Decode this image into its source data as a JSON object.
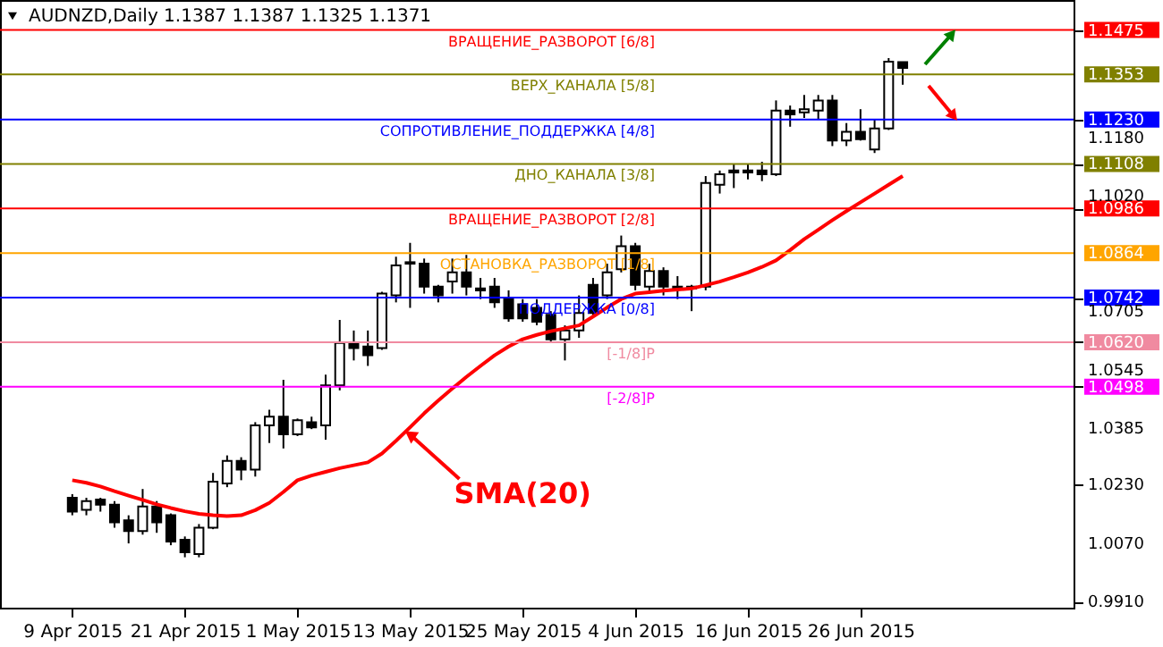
{
  "chart_data": {
    "type": "candlestick",
    "title": "AUDNZD,Daily  1.1387 1.1387 1.1325 1.1371",
    "categories": [
      "9 Apr 2015",
      null,
      null,
      null,
      null,
      null,
      null,
      null,
      "21 Apr 2015",
      null,
      null,
      null,
      null,
      null,
      null,
      null,
      "1 May 2015",
      null,
      null,
      null,
      null,
      null,
      null,
      null,
      "13 May 2015",
      null,
      null,
      null,
      null,
      null,
      null,
      null,
      "25 May 2015",
      null,
      null,
      null,
      null,
      null,
      null,
      null,
      "4 Jun 2015",
      null,
      null,
      null,
      null,
      null,
      null,
      null,
      "16 Jun 2015",
      null,
      null,
      null,
      null,
      null,
      null,
      null,
      "26 Jun 2015",
      null,
      null,
      null
    ],
    "ohlc": [
      [
        1.0194,
        1.0204,
        1.0146,
        1.0156
      ],
      [
        1.0161,
        1.0194,
        1.0146,
        1.0185
      ],
      [
        1.0189,
        1.0194,
        1.0156,
        1.0175
      ],
      [
        1.0175,
        1.0185,
        1.0112,
        1.0127
      ],
      [
        1.0132,
        1.0146,
        1.0069,
        1.0103
      ],
      [
        1.0103,
        1.0218,
        1.0093,
        1.017
      ],
      [
        1.017,
        1.0185,
        1.0098,
        1.0127
      ],
      [
        1.0146,
        1.0151,
        1.0064,
        1.0074
      ],
      [
        1.0079,
        1.0088,
        1.0031,
        1.0045
      ],
      [
        1.004,
        1.0122,
        1.0031,
        1.0112
      ],
      [
        1.0112,
        1.0262,
        1.0108,
        1.0238
      ],
      [
        1.0233,
        1.031,
        1.0223,
        1.0295
      ],
      [
        1.0295,
        1.0305,
        1.0242,
        1.0271
      ],
      [
        1.0271,
        1.0401,
        1.0252,
        1.0392
      ],
      [
        1.0392,
        1.0435,
        1.0344,
        1.0416
      ],
      [
        1.0416,
        1.0517,
        1.0329,
        1.0368
      ],
      [
        1.0368,
        1.0411,
        1.0363,
        1.0406
      ],
      [
        1.0401,
        1.0416,
        1.0382,
        1.0387
      ],
      [
        1.0392,
        1.0531,
        1.0353,
        1.0502
      ],
      [
        1.0502,
        1.0681,
        1.0488,
        1.0618
      ],
      [
        1.0618,
        1.0652,
        1.057,
        1.0604
      ],
      [
        1.0608,
        1.0652,
        1.0555,
        1.0584
      ],
      [
        1.0604,
        1.0758,
        1.0599,
        1.0753
      ],
      [
        1.0748,
        1.0854,
        1.0729,
        1.083
      ],
      [
        1.0835,
        1.0892,
        1.0714,
        1.0839
      ],
      [
        1.0835,
        1.0849,
        1.0753,
        1.0772
      ],
      [
        1.0772,
        1.0777,
        1.0729,
        1.0748
      ],
      [
        1.0786,
        1.0849,
        1.0753,
        1.0811
      ],
      [
        1.0811,
        1.0859,
        1.0748,
        1.0772
      ],
      [
        1.0767,
        1.0796,
        1.0738,
        1.0762
      ],
      [
        1.0772,
        1.0796,
        1.0714,
        1.0729
      ],
      [
        1.0738,
        1.0762,
        1.0676,
        1.0685
      ],
      [
        1.0724,
        1.0738,
        1.0676,
        1.0685
      ],
      [
        1.0714,
        1.0738,
        1.0666,
        1.0676
      ],
      [
        1.0695,
        1.0705,
        1.0618,
        1.0628
      ],
      [
        1.0628,
        1.0666,
        1.057,
        1.0652
      ],
      [
        1.0652,
        1.0748,
        1.0632,
        1.07
      ],
      [
        1.0777,
        1.0796,
        1.069,
        1.07
      ],
      [
        1.0748,
        1.0835,
        1.0738,
        1.0811
      ],
      [
        1.082,
        1.0912,
        1.0811,
        1.0883
      ],
      [
        1.0883,
        1.0892,
        1.0762,
        1.0777
      ],
      [
        1.0772,
        1.0835,
        1.0753,
        1.0815
      ],
      [
        1.0815,
        1.0825,
        1.0748,
        1.0772
      ],
      [
        1.0772,
        1.0801,
        1.0738,
        1.0767
      ],
      [
        1.0772,
        1.0777,
        1.0705,
        1.0767
      ],
      [
        1.0772,
        1.1075,
        1.0762,
        1.1056
      ],
      [
        1.1051,
        1.109,
        1.1027,
        1.108
      ],
      [
        1.109,
        1.1109,
        1.1042,
        1.1085
      ],
      [
        1.109,
        1.1109,
        1.1066,
        1.1085
      ],
      [
        1.109,
        1.1114,
        1.1061,
        1.108
      ],
      [
        1.108,
        1.1282,
        1.1075,
        1.1254
      ],
      [
        1.1254,
        1.1268,
        1.121,
        1.1244
      ],
      [
        1.1249,
        1.1297,
        1.1234,
        1.1258
      ],
      [
        1.1254,
        1.1297,
        1.1229,
        1.1282
      ],
      [
        1.1282,
        1.1297,
        1.1157,
        1.1172
      ],
      [
        1.1172,
        1.122,
        1.1157,
        1.1196
      ],
      [
        1.1196,
        1.1258,
        1.1172,
        1.1176
      ],
      [
        1.1148,
        1.1229,
        1.1138,
        1.1205
      ],
      [
        1.1205,
        1.1398,
        1.1201,
        1.1388
      ],
      [
        1.1387,
        1.1387,
        1.1325,
        1.1371
      ]
    ],
    "series": [
      {
        "type": "line",
        "name": "SMA(20)",
        "color": "#ff0000",
        "values": [
          1.0242,
          1.0235,
          1.0225,
          1.0212,
          1.02,
          1.0188,
          1.0176,
          1.0166,
          1.0157,
          1.015,
          1.0146,
          1.0144,
          1.0146,
          1.016,
          1.018,
          1.021,
          1.0242,
          1.0255,
          1.0265,
          1.0275,
          1.0283,
          1.0291,
          1.0315,
          1.035,
          1.0387,
          1.0425,
          1.046,
          1.0493,
          1.0525,
          1.0555,
          1.0584,
          1.0608,
          1.0628,
          1.064,
          1.065,
          1.0658,
          1.0666,
          1.069,
          1.0715,
          1.0738,
          1.0753,
          1.0757,
          1.0761,
          1.0764,
          1.0767,
          1.0776,
          1.0786,
          1.0798,
          1.0811,
          1.0826,
          1.0844,
          1.0872,
          1.0902,
          1.0928,
          1.0954,
          1.0979,
          1.1003,
          1.1027,
          1.1051,
          1.1075
        ]
      }
    ],
    "ref_lines": [
      {
        "axis": "y",
        "value": 1.1475,
        "label": "ВРАЩЕНИЕ_РАЗВОРОТ [6/8]",
        "color": "#ff0000"
      },
      {
        "axis": "y",
        "value": 1.1353,
        "label": "ВЕРХ_КАНАЛА [5/8]",
        "color": "#808000"
      },
      {
        "axis": "y",
        "value": 1.123,
        "label": "СОПРОТИВЛЕНИЕ_ПОДДЕРЖКА [4/8]",
        "color": "#0000ff"
      },
      {
        "axis": "y",
        "value": 1.1108,
        "label": "ДНО_КАНАЛА [3/8]",
        "color": "#808000"
      },
      {
        "axis": "y",
        "value": 1.0986,
        "label": "ВРАЩЕНИЕ_РАЗВОРОТ [2/8]",
        "color": "#ff0000"
      },
      {
        "axis": "y",
        "value": 1.0864,
        "label": "ОСТАНОВКА_РАЗВОРОТ [1/8]",
        "color": "#ffa500"
      },
      {
        "axis": "y",
        "value": 1.0742,
        "label": "ПОДДЕРЖКА [0/8]",
        "color": "#0000ff"
      },
      {
        "axis": "y",
        "value": 1.062,
        "label": "[-1/8]P",
        "color": "#f08aa0"
      },
      {
        "axis": "y",
        "value": 1.0498,
        "label": "[-2/8]P",
        "color": "#ff00ff"
      }
    ],
    "ylim": [
      0.9893,
      1.1557
    ],
    "yticks": [
      {
        "value": 0.991,
        "label": "0.9910"
      },
      {
        "value": 1.007,
        "label": "1.0070"
      },
      {
        "value": 1.023,
        "label": "1.0230"
      },
      {
        "value": 1.0385,
        "label": "1.0385"
      },
      {
        "value": 1.0498,
        "label": "1.0498"
      },
      {
        "value": 1.0545,
        "label": "1.0545"
      },
      {
        "value": 1.062,
        "label": "1.0620"
      },
      {
        "value": 1.0705,
        "label": "1.0705"
      },
      {
        "value": 1.0742,
        "label": "1.0742"
      },
      {
        "value": 1.0864,
        "label": "1.0864"
      },
      {
        "value": 1.0986,
        "label": "1.0986"
      },
      {
        "value": 1.102,
        "label": "1.1020"
      },
      {
        "value": 1.1108,
        "label": "1.1108"
      },
      {
        "value": 1.118,
        "label": "1.1180"
      },
      {
        "value": 1.123,
        "label": "1.1230"
      },
      {
        "value": 1.1353,
        "label": "1.1353"
      },
      {
        "value": 1.1475,
        "label": "1.1475"
      }
    ],
    "grid": false
  }
}
